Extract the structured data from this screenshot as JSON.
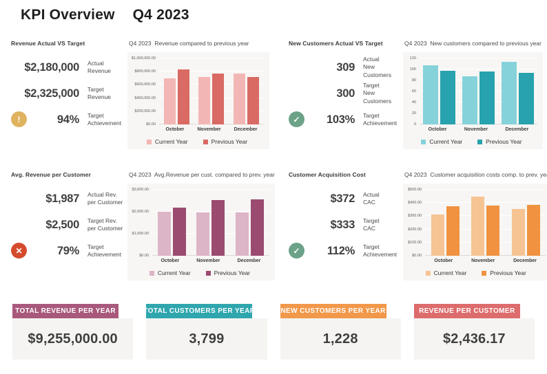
{
  "header": {
    "title": "KPI Overview",
    "period": "Q4 2023"
  },
  "quadrants": [
    {
      "kpi": {
        "title": "Revenue Actual VS Target",
        "rows": [
          {
            "value": "$2,180,000",
            "label1": "Actual",
            "label2": "Revenue"
          },
          {
            "value": "$2,325,000",
            "label1": "Target",
            "label2": "Revenue"
          },
          {
            "value": "94%",
            "label1": "Target",
            "label2": "Achievement",
            "icon": "warning-icon",
            "icon_glyph": "!",
            "icon_color": "#DFB35F"
          }
        ]
      }
    },
    {
      "kpi": {
        "title": "New Customers Actual VS Target",
        "rows": [
          {
            "value": "309",
            "label1": "Actual",
            "label2": "New Customers"
          },
          {
            "value": "300",
            "label1": "Target",
            "label2": "New Customers"
          },
          {
            "value": "103%",
            "label1": "Target",
            "label2": "Achievement",
            "icon": "check-icon",
            "icon_glyph": "✓",
            "icon_color": "#6BA288"
          }
        ]
      }
    },
    {
      "kpi": {
        "title": "Avg. Revenue per Customer",
        "rows": [
          {
            "value": "$1,987",
            "label1": "Actual Rev.",
            "label2": "per Customer"
          },
          {
            "value": "$2,500",
            "label1": "Target Rev.",
            "label2": "per Customer"
          },
          {
            "value": "79%",
            "label1": "Target",
            "label2": "Achievement",
            "icon": "cross-icon",
            "icon_glyph": "✕",
            "icon_color": "#D44A2C"
          }
        ]
      }
    },
    {
      "kpi": {
        "title": "Customer Acquisition Cost",
        "rows": [
          {
            "value": "$372",
            "label1": "Actual",
            "label2": "CAC"
          },
          {
            "value": "$333",
            "label1": "Target",
            "label2": "CAC"
          },
          {
            "value": "112%",
            "label1": "Target",
            "label2": "Achievement",
            "icon": "check-icon",
            "icon_glyph": "✓",
            "icon_color": "#6BA288"
          }
        ]
      }
    }
  ],
  "chart_data": [
    {
      "type": "bar",
      "title": "Q4 2023  Revenue compared to previous year",
      "categories": [
        "October",
        "November",
        "December"
      ],
      "series": [
        {
          "name": "Current Year",
          "color": "#F2B6B4",
          "values": [
            695000,
            715000,
            770000
          ]
        },
        {
          "name": "Previous Year",
          "color": "#D96A64",
          "values": [
            830000,
            775000,
            720000
          ]
        }
      ],
      "ylim": [
        0,
        1000000
      ],
      "ytick_labels": [
        "$1,000,000.00",
        "$800,000.00",
        "$600,000.00",
        "$400,000.00",
        "$200,000.00",
        "$0.00"
      ],
      "ytick_values": [
        1000000,
        800000,
        600000,
        400000,
        200000,
        0
      ],
      "grid": true,
      "legend_position": "bottom"
    },
    {
      "type": "bar",
      "title": "Q4 2023  New customers compared to previous year",
      "categories": [
        "October",
        "November",
        "December"
      ],
      "series": [
        {
          "name": "Current Year",
          "color": "#85D2DA",
          "values": [
            108,
            87,
            114
          ]
        },
        {
          "name": "Previous Year",
          "color": "#27A2AE",
          "values": [
            97,
            96,
            94
          ]
        }
      ],
      "ylim": [
        0,
        120
      ],
      "ytick_labels": [
        "120",
        "100",
        "80",
        "60",
        "40",
        "20",
        "0"
      ],
      "ytick_values": [
        120,
        100,
        80,
        60,
        40,
        20,
        0
      ],
      "grid": true,
      "legend_position": "bottom"
    },
    {
      "type": "bar",
      "title": "Q4 2023  Avg.Revenue per cust. compared to prev. year",
      "categories": [
        "October",
        "November",
        "December"
      ],
      "series": [
        {
          "name": "Current Year",
          "color": "#DCB5C7",
          "values": [
            2010,
            1975,
            1975
          ]
        },
        {
          "name": "Previous Year",
          "color": "#9B4B70",
          "values": [
            2200,
            2530,
            2555
          ]
        }
      ],
      "ylim": [
        0,
        3000
      ],
      "ytick_labels": [
        "$3,000.00",
        "$2,000.00",
        "$1,000.00",
        "$0.00"
      ],
      "ytick_values": [
        3000,
        2000,
        1000,
        0
      ],
      "grid": true,
      "legend_position": "bottom"
    },
    {
      "type": "bar",
      "title": "Q4 2023  Customer acquisition costs comp. to prev. year",
      "categories": [
        "October",
        "November",
        "December"
      ],
      "series": [
        {
          "name": "Current Year",
          "color": "#F6C392",
          "values": [
            315,
            448,
            352
          ]
        },
        {
          "name": "Previous Year",
          "color": "#F0923F",
          "values": [
            375,
            378,
            388
          ]
        }
      ],
      "ylim": [
        0,
        500
      ],
      "ytick_labels": [
        "$500.00",
        "$400.00",
        "$300.00",
        "$200.00",
        "$100.00",
        "$0.00"
      ],
      "ytick_values": [
        500,
        400,
        300,
        200,
        100,
        0
      ],
      "grid": true,
      "legend_position": "bottom"
    }
  ],
  "bottom_cards": [
    {
      "title": "TOTAL REVENUE PER YEAR",
      "value": "$9,255,000.00",
      "color": "#A8597B"
    },
    {
      "title": "TOTAL CUSTOMERS PER YEAR",
      "value": "3,799",
      "color": "#2FA6AE"
    },
    {
      "title": "NEW CUSTOMERS PER YEAR",
      "value": "1,228",
      "color": "#F2984A"
    },
    {
      "title": "REVENUE PER CUSTOMER",
      "value": "$2,436.17",
      "color": "#DD6C6C"
    }
  ]
}
